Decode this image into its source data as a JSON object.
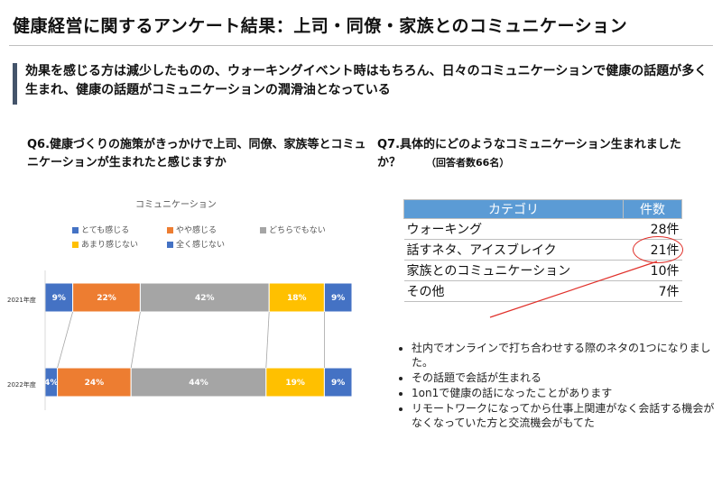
{
  "title": "健康経営に関するアンケート結果：上司・同僚・家族とのコミュニケーション",
  "summary": "効果を感じる方は減少したものの、ウォーキングイベント時はもちろん、日々のコミュニケーションで健康の話題が多く生まれ、健康の話題がコミュニケーションの潤滑油となっている",
  "q6": {
    "text": "Q6.健康づくりの施策がきっかけで上司、同僚、家族等とコミュニケーションが生まれたと感じますか"
  },
  "q7": {
    "text": "Q7.具体的にどのようなコミュニケーション生まれましたか？",
    "note": "（回答者数66名）"
  },
  "chart_data": {
    "type": "bar",
    "orientation": "horizontal-stacked-100",
    "title": "コミュニケーション",
    "categories": [
      "2021年度",
      "2022年度"
    ],
    "series": [
      {
        "name": "とても感じる",
        "color": "#4472c4",
        "values": [
          9,
          4
        ]
      },
      {
        "name": "やや感じる",
        "color": "#ed7d31",
        "values": [
          22,
          24
        ]
      },
      {
        "name": "どちらでもない",
        "color": "#a5a5a5",
        "values": [
          42,
          44
        ]
      },
      {
        "name": "あまり感じない",
        "color": "#ffc000",
        "values": [
          18,
          19
        ]
      },
      {
        "name": "全く感じない",
        "color": "#4472c4",
        "values": [
          9,
          9
        ]
      }
    ],
    "value_suffix": "%",
    "legend_position": "top"
  },
  "table": {
    "headers": [
      "カテゴリ",
      "件数"
    ],
    "rows": [
      [
        "ウォーキング",
        "28件"
      ],
      [
        "話すネタ、アイスブレイク",
        "21件"
      ],
      [
        "家族とのコミュニケーション",
        "10件"
      ],
      [
        "その他",
        "7件"
      ]
    ],
    "highlight_color": "#e0302a"
  },
  "comments": [
    "社内でオンラインで打ち合わせする際のネタの1つになりました。",
    "その話題で会話が生まれる",
    "1on1で健康の話になったことがあります",
    "リモートワークになってから仕事上関連がなく会話する機会がなくなっていた方と交流機会がもてた"
  ]
}
